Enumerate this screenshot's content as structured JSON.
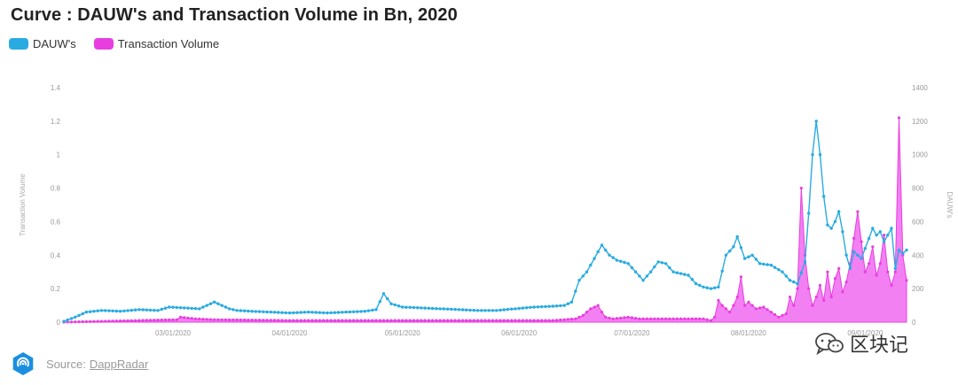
{
  "title": "Curve : DAUW's and Transaction Volume in Bn, 2020",
  "legend": [
    {
      "label": "DAUW's",
      "color": "#29abe2"
    },
    {
      "label": "Transaction Volume",
      "color": "#e83ee0"
    }
  ],
  "source": {
    "prefix": "Source:",
    "link": "DappRadar"
  },
  "watermark": {
    "text": "区块记",
    "icon": "wechat-bubble-icon"
  },
  "colors": {
    "dauw": "#29abe2",
    "volume": "#e83ee0",
    "volume_fill": "#f06af0"
  },
  "chart_data": {
    "type": "line",
    "left_axis": {
      "label": "Transaction Volume",
      "ticks": [
        "0",
        "0.2",
        "0.4",
        "0.6",
        "0.8",
        "1",
        "1.2",
        "1.4"
      ],
      "range": [
        0,
        1.4
      ]
    },
    "right_axis": {
      "label": "DAUW's",
      "ticks": [
        "0",
        "200",
        "400",
        "600",
        "800",
        "1000",
        "1200",
        "1400"
      ],
      "range": [
        0,
        1400
      ]
    },
    "x_ticks": [
      {
        "label": "03/01/2020",
        "day": 29
      },
      {
        "label": "04/01/2020",
        "day": 60
      },
      {
        "label": "05/01/2020",
        "day": 90
      },
      {
        "label": "06/01/2020",
        "day": 121
      },
      {
        "label": "07/01/2020",
        "day": 151
      },
      {
        "label": "08/01/2020",
        "day": 182
      },
      {
        "label": "09/01/2020",
        "day": 213
      }
    ],
    "x_range": [
      0,
      224
    ],
    "series": [
      {
        "name": "DAUW's",
        "axis": "right",
        "style": "line",
        "keyframes": [
          [
            0,
            5
          ],
          [
            3,
            30
          ],
          [
            6,
            60
          ],
          [
            10,
            70
          ],
          [
            15,
            65
          ],
          [
            20,
            75
          ],
          [
            25,
            70
          ],
          [
            28,
            90
          ],
          [
            32,
            85
          ],
          [
            36,
            80
          ],
          [
            40,
            120
          ],
          [
            42,
            100
          ],
          [
            44,
            80
          ],
          [
            46,
            70
          ],
          [
            50,
            65
          ],
          [
            55,
            60
          ],
          [
            60,
            55
          ],
          [
            65,
            60
          ],
          [
            70,
            55
          ],
          [
            75,
            60
          ],
          [
            80,
            65
          ],
          [
            83,
            75
          ],
          [
            85,
            170
          ],
          [
            87,
            110
          ],
          [
            90,
            90
          ],
          [
            95,
            85
          ],
          [
            100,
            80
          ],
          [
            105,
            75
          ],
          [
            110,
            70
          ],
          [
            115,
            70
          ],
          [
            120,
            80
          ],
          [
            125,
            90
          ],
          [
            130,
            95
          ],
          [
            133,
            100
          ],
          [
            135,
            120
          ],
          [
            137,
            250
          ],
          [
            139,
            300
          ],
          [
            141,
            380
          ],
          [
            143,
            460
          ],
          [
            145,
            400
          ],
          [
            147,
            370
          ],
          [
            150,
            350
          ],
          [
            152,
            300
          ],
          [
            154,
            250
          ],
          [
            156,
            300
          ],
          [
            158,
            360
          ],
          [
            160,
            350
          ],
          [
            162,
            300
          ],
          [
            164,
            290
          ],
          [
            166,
            280
          ],
          [
            168,
            230
          ],
          [
            170,
            210
          ],
          [
            172,
            200
          ],
          [
            174,
            210
          ],
          [
            176,
            400
          ],
          [
            178,
            450
          ],
          [
            179,
            510
          ],
          [
            181,
            380
          ],
          [
            183,
            400
          ],
          [
            185,
            350
          ],
          [
            188,
            340
          ],
          [
            191,
            300
          ],
          [
            193,
            250
          ],
          [
            195,
            230
          ],
          [
            197,
            360
          ],
          [
            198,
            650
          ],
          [
            199,
            1000
          ],
          [
            200,
            1200
          ],
          [
            201,
            1000
          ],
          [
            202,
            750
          ],
          [
            203,
            580
          ],
          [
            204,
            560
          ],
          [
            205,
            600
          ],
          [
            206,
            660
          ],
          [
            207,
            540
          ],
          [
            208,
            400
          ],
          [
            209,
            320
          ],
          [
            210,
            420
          ],
          [
            212,
            380
          ],
          [
            214,
            500
          ],
          [
            215,
            560
          ],
          [
            216,
            520
          ],
          [
            217,
            540
          ],
          [
            218,
            480
          ],
          [
            220,
            560
          ],
          [
            221,
            320
          ],
          [
            222,
            430
          ],
          [
            223,
            410
          ],
          [
            224,
            430
          ]
        ]
      },
      {
        "name": "Transaction Volume",
        "axis": "left",
        "style": "area",
        "keyframes": [
          [
            0,
            0
          ],
          [
            10,
            0.005
          ],
          [
            20,
            0.01
          ],
          [
            30,
            0.015
          ],
          [
            31,
            0.03
          ],
          [
            33,
            0.025
          ],
          [
            35,
            0.02
          ],
          [
            40,
            0.015
          ],
          [
            60,
            0.01
          ],
          [
            80,
            0.01
          ],
          [
            100,
            0.01
          ],
          [
            120,
            0.01
          ],
          [
            130,
            0.01
          ],
          [
            136,
            0.02
          ],
          [
            138,
            0.04
          ],
          [
            140,
            0.08
          ],
          [
            142,
            0.1
          ],
          [
            143,
            0.06
          ],
          [
            144,
            0.03
          ],
          [
            146,
            0.02
          ],
          [
            150,
            0.03
          ],
          [
            153,
            0.02
          ],
          [
            160,
            0.02
          ],
          [
            165,
            0.02
          ],
          [
            170,
            0.02
          ],
          [
            172,
            0.01
          ],
          [
            173,
            0.03
          ],
          [
            174,
            0.13
          ],
          [
            175,
            0.1
          ],
          [
            176,
            0.08
          ],
          [
            177,
            0.06
          ],
          [
            178,
            0.1
          ],
          [
            179,
            0.15
          ],
          [
            180,
            0.27
          ],
          [
            181,
            0.1
          ],
          [
            182,
            0.12
          ],
          [
            183,
            0.1
          ],
          [
            184,
            0.08
          ],
          [
            186,
            0.09
          ],
          [
            188,
            0.06
          ],
          [
            190,
            0.03
          ],
          [
            191,
            0.04
          ],
          [
            192,
            0.05
          ],
          [
            193,
            0.15
          ],
          [
            194,
            0.1
          ],
          [
            195,
            0.2
          ],
          [
            196,
            0.8
          ],
          [
            197,
            0.4
          ],
          [
            198,
            0.2
          ],
          [
            199,
            0.1
          ],
          [
            200,
            0.15
          ],
          [
            201,
            0.22
          ],
          [
            202,
            0.13
          ],
          [
            203,
            0.3
          ],
          [
            204,
            0.15
          ],
          [
            205,
            0.26
          ],
          [
            206,
            0.32
          ],
          [
            207,
            0.18
          ],
          [
            208,
            0.24
          ],
          [
            209,
            0.35
          ],
          [
            210,
            0.5
          ],
          [
            211,
            0.66
          ],
          [
            212,
            0.48
          ],
          [
            213,
            0.3
          ],
          [
            214,
            0.35
          ],
          [
            215,
            0.45
          ],
          [
            216,
            0.28
          ],
          [
            217,
            0.35
          ],
          [
            218,
            0.52
          ],
          [
            219,
            0.3
          ],
          [
            220,
            0.22
          ],
          [
            221,
            0.3
          ],
          [
            222,
            1.22
          ],
          [
            223,
            0.4
          ],
          [
            224,
            0.25
          ]
        ]
      }
    ]
  }
}
